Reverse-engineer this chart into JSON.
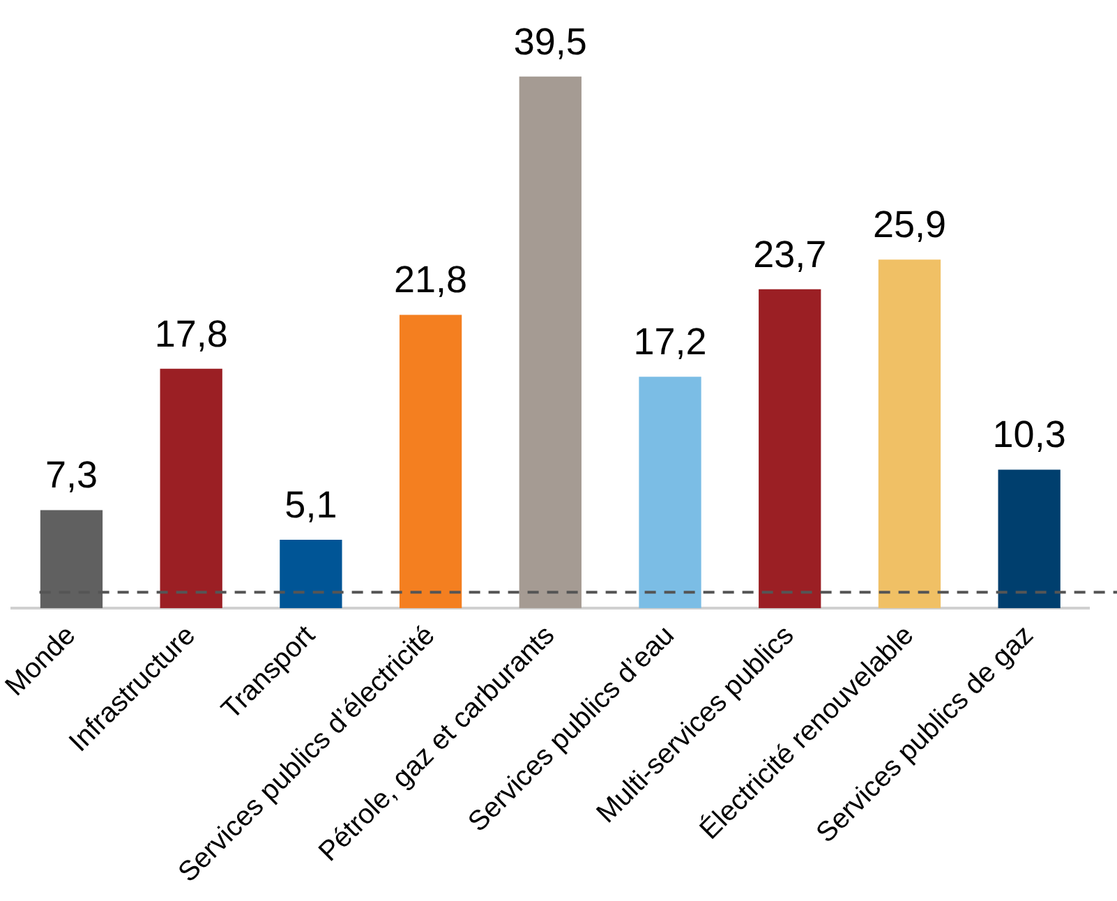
{
  "chart_data": {
    "type": "bar",
    "categories": [
      "Monde",
      "Infrastructure",
      "Transport",
      "Services publics d’électricité",
      "Pétrole, gaz et carburants",
      "Services publics d’eau",
      "Multi-services publics",
      "Électricité renouvelable",
      "Services publics de gaz"
    ],
    "values": [
      7.3,
      17.8,
      5.1,
      21.8,
      39.5,
      17.2,
      23.7,
      25.9,
      10.3
    ],
    "colors": [
      "#606060",
      "#9b1f24",
      "#005596",
      "#f47f20",
      "#a59b93",
      "#7bbde5",
      "#9b1f24",
      "#f0c065",
      "#003f6e"
    ],
    "value_labels": [
      "7,3",
      "17,8",
      "5,1",
      "21,8",
      "39,5",
      "17,2",
      "23,7",
      "25,9",
      "10,3"
    ],
    "ref_lines": [
      {
        "axis": "y",
        "value": 1.2,
        "color": "#555555",
        "line_style": "dashed"
      }
    ],
    "grid": false,
    "legend": false
  }
}
